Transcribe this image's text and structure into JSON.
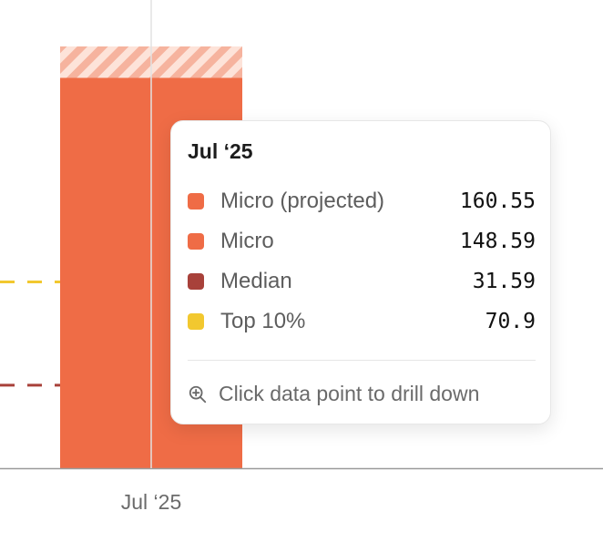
{
  "chart_data": {
    "type": "bar",
    "categories": [
      "Jul ‘25"
    ],
    "series": [
      {
        "name": "Micro (projected)",
        "values": [
          160.55
        ],
        "color": "#f9c7b6",
        "pattern": "hatched"
      },
      {
        "name": "Micro",
        "values": [
          148.59
        ],
        "color": "#ef6c46"
      },
      {
        "name": "Median",
        "values": [
          31.59
        ],
        "color": "#a8413a",
        "style": "dashed-line"
      },
      {
        "name": "Top 10%",
        "values": [
          70.9
        ],
        "color": "#f2c82f",
        "style": "dashed-line"
      }
    ],
    "ylim": [
      0,
      175
    ],
    "grid": false
  },
  "x_axis": {
    "tick_label": "Jul ‘25"
  },
  "tooltip": {
    "title": "Jul ‘25",
    "rows": [
      {
        "label": "Micro (projected)",
        "value": "160.55",
        "color": "#ef6c46"
      },
      {
        "label": "Micro",
        "value": "148.59",
        "color": "#ef6c46"
      },
      {
        "label": "Median",
        "value": "31.59",
        "color": "#a8413a"
      },
      {
        "label": "Top 10%",
        "value": "70.9",
        "color": "#f2c82f"
      }
    ],
    "hint_text": "Click data point to drill down",
    "hint_icon": "zoom-in-icon"
  }
}
